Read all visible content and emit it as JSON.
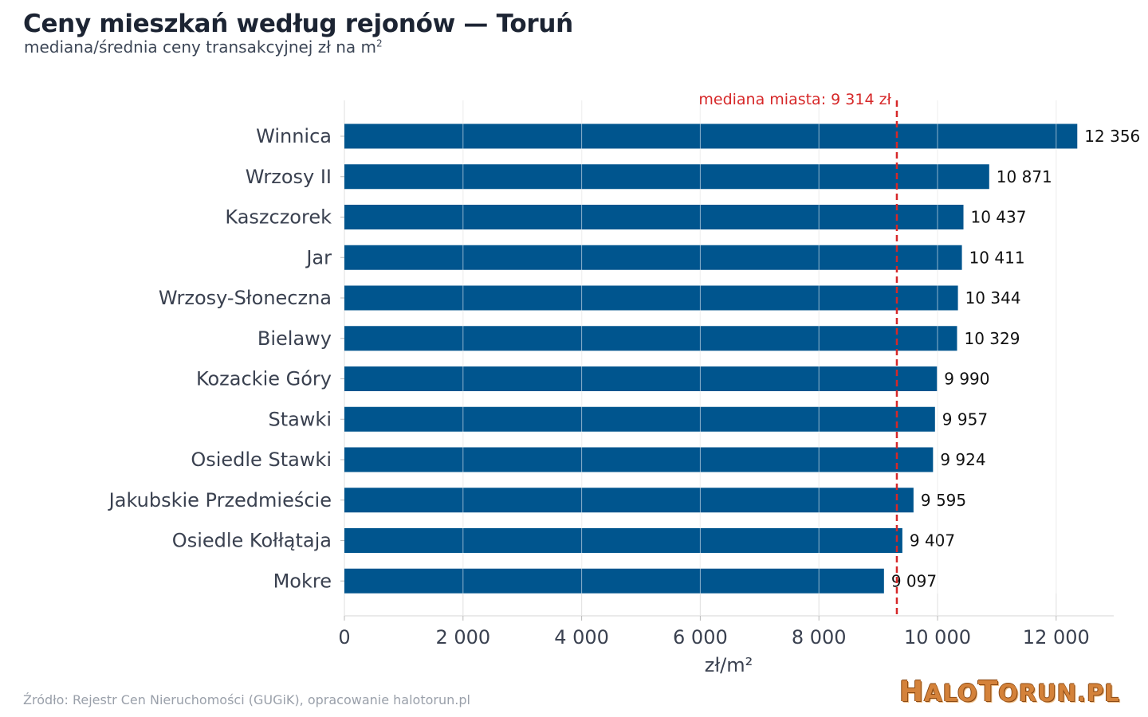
{
  "header": {
    "title": "Ceny mieszkań według rejonów — Toruń",
    "subtitle": "mediana/średnia ceny transakcyjnej zł na m",
    "subtitle_sup": "2"
  },
  "footer": {
    "source": "Źródło: Rejestr Cen Nieruchomości (GUGiK), opracowanie halotorun.pl",
    "logo_h": "H",
    "logo_alo": "ALO",
    "logo_t": "T",
    "logo_orun": "ORUN.PL"
  },
  "chart_data": {
    "type": "bar",
    "orientation": "horizontal",
    "title": "Ceny mieszkań według rejonów — Toruń",
    "subtitle": "mediana/średnia ceny transakcyjnej zł na m²",
    "xlabel": "zł/m²",
    "ylabel": "",
    "xlim": [
      0,
      13000
    ],
    "xticks": [
      0,
      2000,
      4000,
      6000,
      8000,
      10000,
      12000
    ],
    "xtick_labels": [
      "0",
      "2 000",
      "4 000",
      "6 000",
      "8 000",
      "10 000",
      "12 000"
    ],
    "grid": true,
    "bar_color": "#00558e",
    "reference_line": {
      "value": 9314,
      "label": "mediana miasta: 9 314 zł",
      "color": "#d62728",
      "style": "dashed"
    },
    "categories": [
      "Winnica",
      "Wrzosy II",
      "Kaszczorek",
      "Jar",
      "Wrzosy-Słoneczna",
      "Bielawy",
      "Kozackie Góry",
      "Stawki",
      "Osiedle Stawki",
      "Jakubskie Przedmieście",
      "Osiedle Kołłątaja",
      "Mokre"
    ],
    "values": [
      12356,
      10871,
      10437,
      10411,
      10344,
      10329,
      9990,
      9957,
      9924,
      9595,
      9407,
      9097
    ],
    "value_labels": [
      "12 356",
      "10 871",
      "10 437",
      "10 411",
      "10 344",
      "10 329",
      "9 990",
      "9 957",
      "9 924",
      "9 595",
      "9 407",
      "9 097"
    ]
  }
}
